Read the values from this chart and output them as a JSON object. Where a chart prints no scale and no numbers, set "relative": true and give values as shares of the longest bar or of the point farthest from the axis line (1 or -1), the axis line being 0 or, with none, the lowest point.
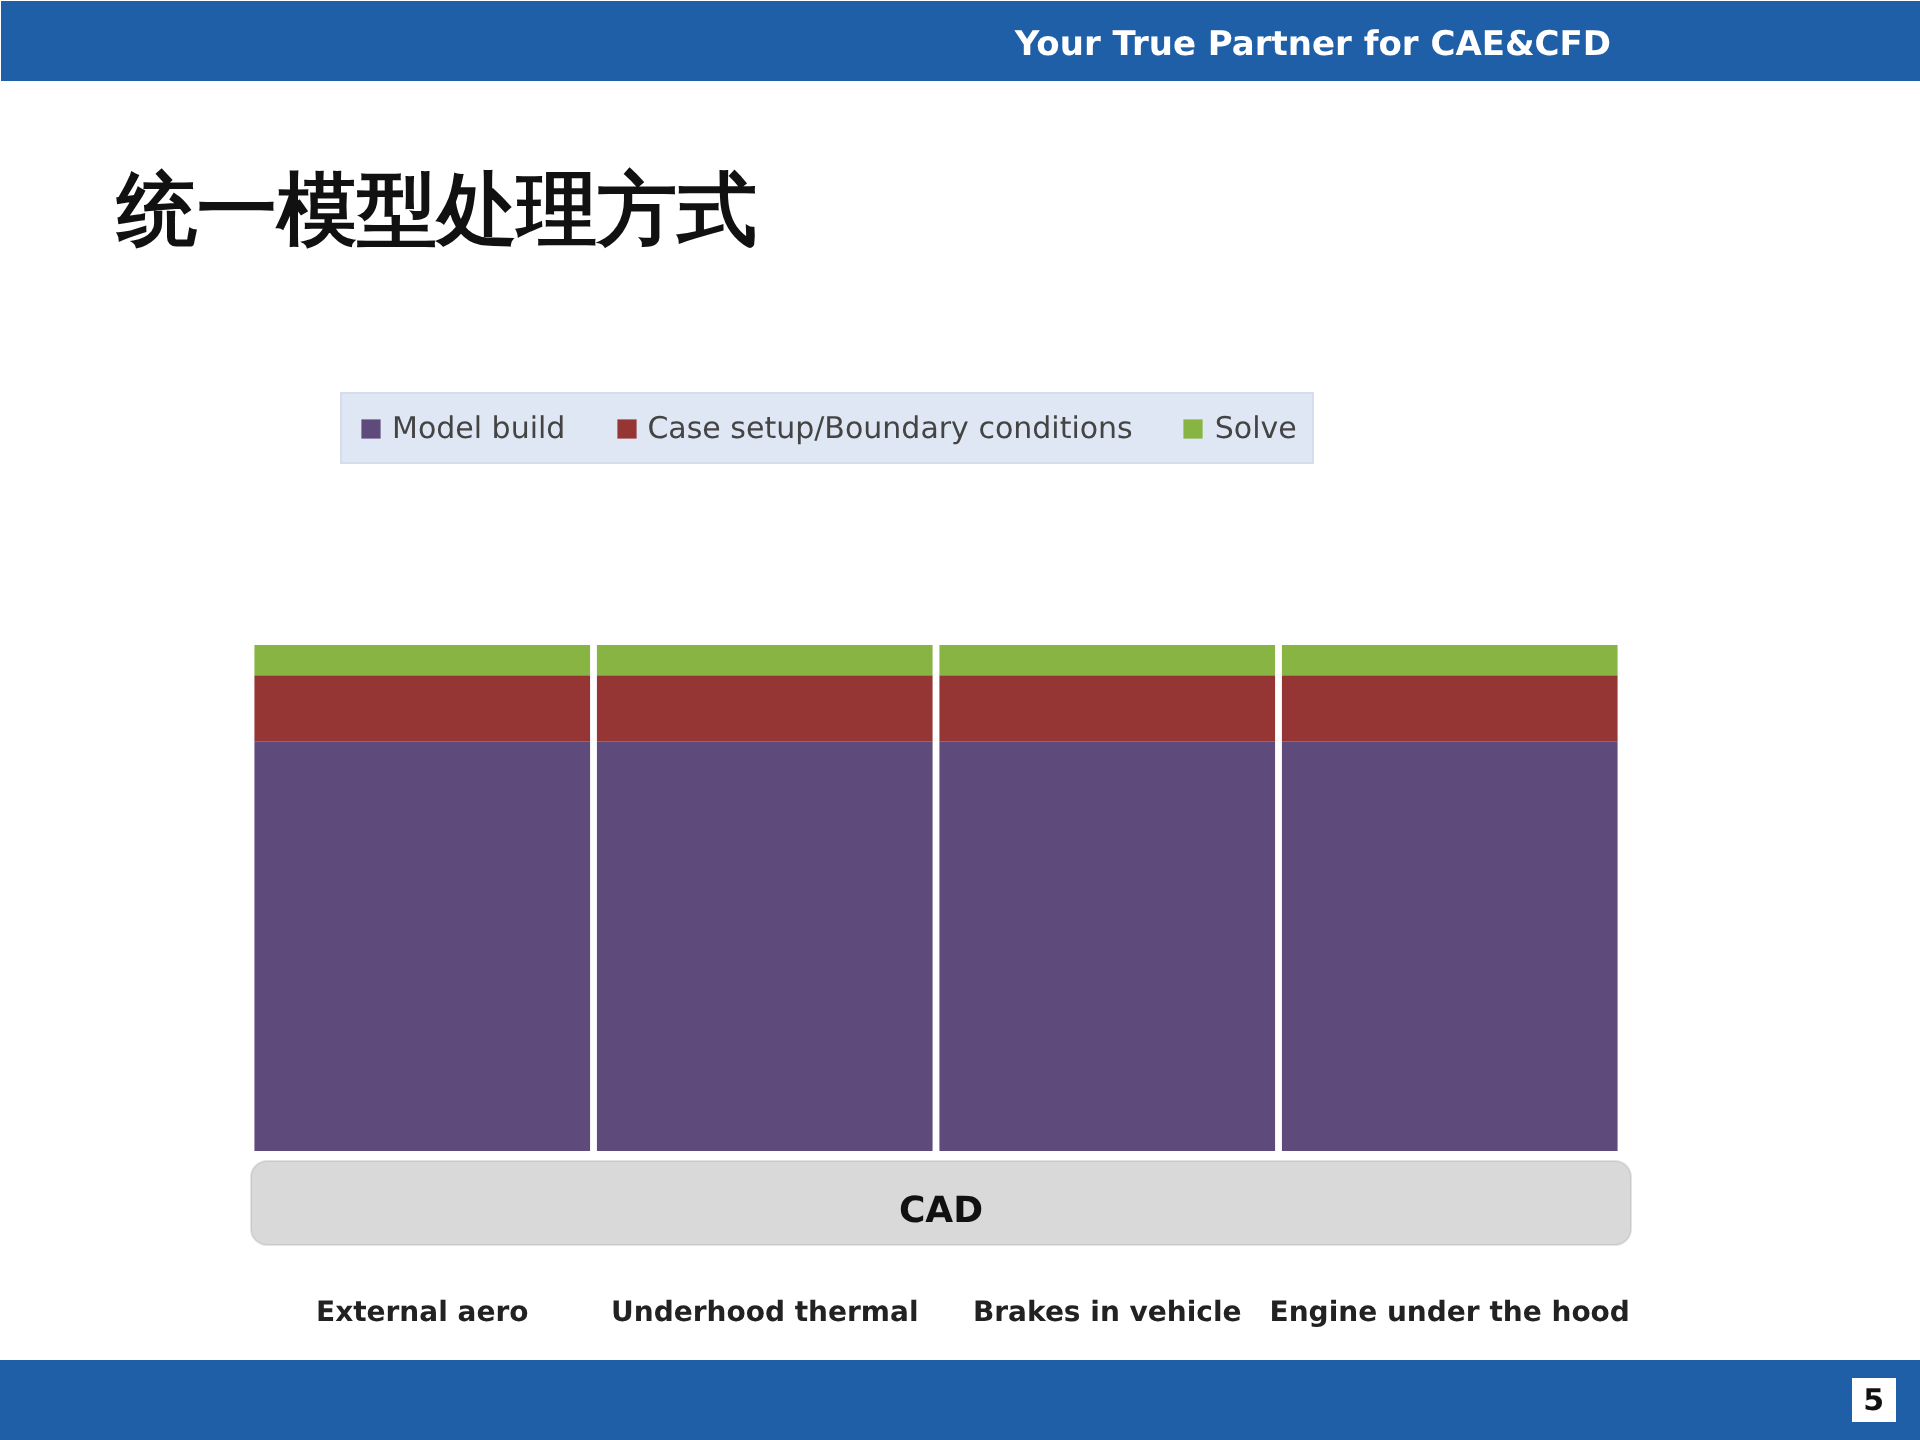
{
  "chart_data": {
    "type": "bar",
    "stacked": true,
    "relative": true,
    "title": "统一模型处理方式",
    "categories": [
      "External aero",
      "Underhood thermal",
      "Brakes in vehicle",
      "Engine under the hood"
    ],
    "series": [
      {
        "name": "Model build",
        "color": "#5f4a7c",
        "values": [
          0.81,
          0.81,
          0.81,
          0.81
        ]
      },
      {
        "name": "Case setup/Boundary conditions",
        "color": "#963634",
        "values": [
          0.13,
          0.13,
          0.13,
          0.13
        ]
      },
      {
        "name": "Solve",
        "color": "#88b443",
        "values": [
          0.06,
          0.06,
          0.06,
          0.06
        ]
      }
    ],
    "legend": "top",
    "grid": false,
    "annotations": [
      "CAD",
      "Your True Partner for CAE&CFD",
      "5"
    ]
  }
}
